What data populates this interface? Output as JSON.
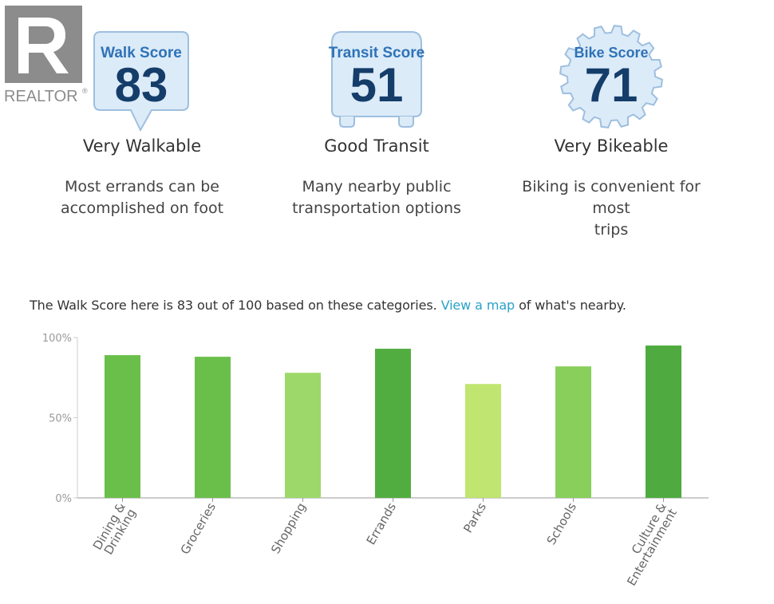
{
  "logo": {
    "text": "REALTOR",
    "mark": "®"
  },
  "badges": [
    {
      "label": "Walk Score",
      "score": "83",
      "rating": "Very Walkable",
      "description_line1": "Most errands can be",
      "description_line2": "accomplished on foot",
      "icon": "speech-bubble-badge"
    },
    {
      "label": "Transit Score",
      "score": "51",
      "rating": "Good Transit",
      "description_line1": "Many nearby public",
      "description_line2": "transportation options",
      "icon": "bus-badge"
    },
    {
      "label": "Bike Score",
      "score": "71",
      "rating": "Very Bikeable",
      "description_line1": "Biking is convenient for most",
      "description_line2": "trips",
      "icon": "gear-badge"
    }
  ],
  "summary": {
    "before": "The Walk Score here is 83 out of 100 based on these categories.",
    "link": "View a map",
    "after": "of what's nearby."
  },
  "colors": {
    "badge_fill": "#dcebf8",
    "badge_stroke": "#9ebfdf",
    "badge_label": "#2e73b8",
    "badge_score": "#143d6a",
    "link": "#2aa1c9"
  },
  "chart_data": {
    "type": "bar",
    "categories": [
      "Dining & Drinking",
      "Groceries",
      "Shopping",
      "Errands",
      "Parks",
      "Schools",
      "Culture & Entertainment"
    ],
    "values": [
      89,
      88,
      78,
      93,
      71,
      82,
      95
    ],
    "bar_colors": [
      "#6abf4b",
      "#6abf4b",
      "#9dd96a",
      "#52ad41",
      "#c0e570",
      "#88cf5c",
      "#4fab3f"
    ],
    "ylim": [
      0,
      100
    ],
    "yticks": [
      "0%",
      "50%",
      "100%"
    ],
    "ytick_values": [
      0,
      50,
      100
    ],
    "grid": false
  }
}
